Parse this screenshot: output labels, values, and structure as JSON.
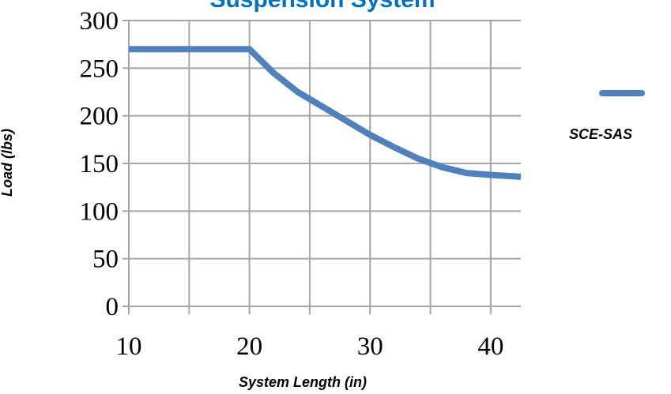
{
  "chart_data": {
    "type": "line",
    "title": "Suspension System",
    "xlabel": "System Length (in)",
    "ylabel": "Load (lbs)",
    "xlim": [
      10,
      42.5
    ],
    "ylim": [
      0,
      300
    ],
    "x_ticks": [
      10,
      20,
      30,
      40
    ],
    "x_tick_labels": [
      "10",
      "20",
      "30",
      "40"
    ],
    "x_minor_ticks": [
      15,
      25,
      35
    ],
    "y_ticks": [
      0,
      50,
      100,
      150,
      200,
      250,
      300
    ],
    "y_tick_labels": [
      "0",
      "50",
      "100",
      "150",
      "200",
      "250",
      "300"
    ],
    "grid": true,
    "legend_position": "right",
    "series": [
      {
        "name": "SCE-SAS",
        "color": "#4F81BD",
        "x": [
          10,
          20,
          22,
          24,
          26,
          28,
          30,
          32,
          34,
          36,
          38,
          40,
          42.5
        ],
        "y": [
          270,
          270,
          245,
          225,
          210,
          195,
          180,
          167,
          155,
          146,
          140,
          138,
          136
        ]
      }
    ]
  }
}
